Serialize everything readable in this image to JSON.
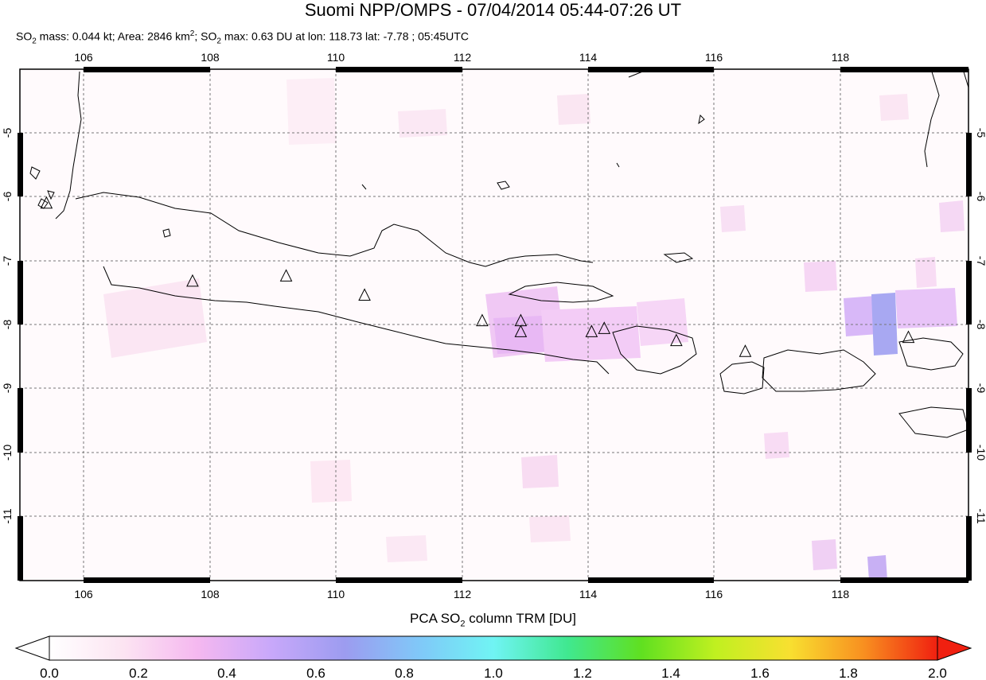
{
  "header": {
    "title": "Suomi NPP/OMPS - 07/04/2014 05:44-07:26 UT",
    "stats": {
      "mass_label": "SO",
      "mass_sub": "2",
      "mass_text": " mass: 0.044 kt; Area: 2846 km",
      "area_sup": "2",
      "max_label": "; SO",
      "max_sub": "2",
      "max_text": " max: 0.63 DU at lon: 118.73 lat: -7.78 ; 05:45UTC"
    }
  },
  "map": {
    "lon_range": [
      105,
      120
    ],
    "lat_range": [
      -12,
      -4
    ],
    "lon_ticks": [
      "106",
      "108",
      "110",
      "112",
      "114",
      "116",
      "118"
    ],
    "lat_ticks": [
      "-5",
      "-6",
      "-7",
      "-8",
      "-9",
      "-10",
      "-11"
    ],
    "volcanoes": [
      {
        "lon": 105.42,
        "lat": -6.1
      },
      {
        "lon": 107.73,
        "lat": -7.32
      },
      {
        "lon": 109.21,
        "lat": -7.24
      },
      {
        "lon": 110.45,
        "lat": -7.54
      },
      {
        "lon": 112.31,
        "lat": -7.94
      },
      {
        "lon": 112.92,
        "lat": -7.94
      },
      {
        "lon": 112.92,
        "lat": -8.11
      },
      {
        "lon": 114.04,
        "lat": -8.11
      },
      {
        "lon": 114.24,
        "lat": -8.06
      },
      {
        "lon": 115.38,
        "lat": -8.25
      },
      {
        "lon": 116.47,
        "lat": -8.42
      },
      {
        "lon": 119.05,
        "lat": -8.2
      }
    ]
  },
  "colorbar": {
    "title_pre": "PCA SO",
    "title_sub": "2",
    "title_post": " column TRM [DU]",
    "ticks": [
      "0.0",
      "0.2",
      "0.4",
      "0.6",
      "0.8",
      "1.0",
      "1.2",
      "1.4",
      "1.6",
      "1.8",
      "2.0"
    ],
    "colors": [
      "#ffffff",
      "#fce4f2",
      "#f5b8f0",
      "#c8a8fa",
      "#9c9cf0",
      "#80c8f8",
      "#70f4f4",
      "#40e890",
      "#60e020",
      "#c0f020",
      "#f8e030",
      "#f89020",
      "#f02010"
    ]
  }
}
